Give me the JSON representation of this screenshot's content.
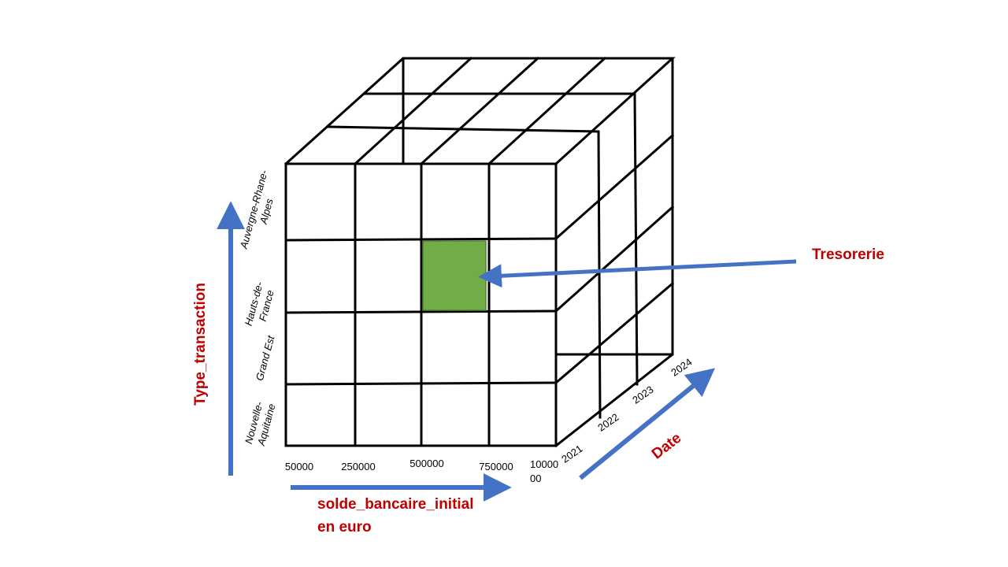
{
  "colors": {
    "arrow": "#4472c4",
    "label": "#c00000",
    "highlight_fill": "#70ad47",
    "highlight_stroke": "#538135"
  },
  "axes": {
    "vertical": {
      "title": "Type_transaction",
      "labels": [
        [
          "Auvergne-Rhane-",
          "Alpes"
        ],
        [
          "Hauts-de-",
          "France"
        ],
        [
          "Grand Est"
        ],
        [
          "Nouvelle-",
          "Aquitaine"
        ]
      ]
    },
    "horizontal": {
      "title_line1": "solde_bancaire_initial",
      "title_line2": "en euro",
      "ticks": [
        "50000",
        "250000",
        "500000",
        "750000"
      ],
      "last_tick_line1": "10000",
      "last_tick_line2": "00"
    },
    "depth": {
      "title": "Date",
      "ticks": [
        "2021",
        "2022",
        "2023",
        "2024"
      ]
    }
  },
  "highlight": {
    "label": "Tresorerie"
  }
}
